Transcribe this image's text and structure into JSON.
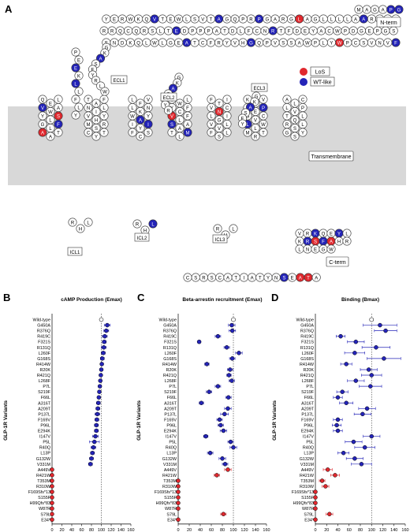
{
  "panels": {
    "A": "A",
    "B": "B",
    "C": "C",
    "D": "D"
  },
  "snake": {
    "n_term_label": "N-term",
    "c_term_label": "C-term",
    "transmembrane_label": "Transmembrane",
    "ecl_labels": [
      "ECL1",
      "ECL2",
      "ECL3"
    ],
    "icl_labels": [
      "ICL1",
      "ICL2",
      "ICL3"
    ],
    "legend": [
      {
        "label": "LoS",
        "color": "#e0282e"
      },
      {
        "label": "WT-like",
        "color": "#2424b8"
      }
    ],
    "colors": {
      "membrane": "#d8d8d8",
      "los": "#e0282e",
      "wt_like": "#2424b8",
      "residue_fill": "#ffffff"
    },
    "nterm_rows": [
      "MAGAPG",
      "PRLRAALLLLGALGRAGPRPQGATVSLWETVQKWREYRRQCQRSLTEDPPPATDLFCNRTFDEYACWPDGEPGSFVNVSCPWYLPWASSVPQGHVYRFCTAEGLWLQKDNSSLPWRDLSECEESKRGERSSPEEQLLFLY"
    ],
    "cterm_row": "CSRSCATIATYNSEATA"
  },
  "chart_data": [
    {
      "type": "scatter",
      "title": "cAMP Production (Emax)",
      "xlabel": "cAMP Production (Emax % wild-type)",
      "ylabel": "GLP-1R Variants",
      "xlim": [
        0,
        160
      ],
      "xticks": [
        0,
        20,
        40,
        60,
        80,
        100,
        120,
        140,
        160
      ],
      "reference_line": 100,
      "categories": [
        "Wild-type",
        "G450A",
        "R376Q",
        "R419C",
        "F321S",
        "R131Q",
        "L260F",
        "G168S",
        "R414W",
        "R20K",
        "R421Q",
        "L268F",
        "P7L",
        "S219F",
        "F66L",
        "A316T",
        "A209T",
        "P137L",
        "F169V",
        "P96L",
        "E294K",
        "I147V",
        "P5L",
        "R40Q",
        "L13P",
        "G132W",
        "V331M",
        "A449V",
        "R421W",
        "T353M",
        "R310W",
        "F169Sfs*13",
        "S155F",
        "H99Qfs*83",
        "W87R",
        "S79L",
        "E34*"
      ],
      "values": [
        100,
        112,
        110,
        107,
        106,
        105,
        104,
        102,
        101,
        100,
        99,
        98,
        97,
        96,
        95,
        94,
        93,
        92,
        91,
        90,
        90,
        88,
        86,
        84,
        82,
        80,
        78,
        0,
        0,
        0,
        0,
        0,
        0,
        0,
        0,
        0,
        0
      ],
      "errors": [
        3,
        6,
        5,
        5,
        4,
        5,
        4,
        4,
        3,
        3,
        3,
        3,
        3,
        3,
        3,
        4,
        4,
        5,
        4,
        4,
        4,
        6,
        10,
        5,
        4,
        4,
        4,
        0,
        0,
        0,
        0,
        0,
        0,
        0,
        0,
        0,
        0
      ],
      "series_colors": {
        "wild_type": "#ffffff",
        "wt_like": "#2424b8",
        "los": "#e0282e"
      }
    },
    {
      "type": "scatter",
      "title": "Beta-arrestin recruitment (Emax)",
      "xlabel": "Beta-arrestin recruitment (Emax % wild-type)",
      "ylabel": "GLP-1R Variants",
      "xlim": [
        0,
        160
      ],
      "xticks": [
        0,
        20,
        40,
        60,
        80,
        100,
        120,
        140,
        160
      ],
      "reference_line": 100,
      "categories": [
        "Wild-type",
        "G450A",
        "R376Q",
        "R419C",
        "F321S",
        "R131Q",
        "L260F",
        "G168S",
        "R414W",
        "R20K",
        "R421Q",
        "L268F",
        "P7L",
        "S219F",
        "F66L",
        "A316T",
        "A209T",
        "P137L",
        "F169V",
        "P96L",
        "E294K",
        "I147V",
        "P5L",
        "R40Q",
        "L13P",
        "G132W",
        "V331M",
        "A449V",
        "R421W",
        "T353M",
        "R310W",
        "F169Sfs*13",
        "S155F",
        "H99Qfs*83",
        "W87R",
        "S79L",
        "E34*"
      ],
      "values": [
        100,
        97,
        98,
        72,
        38,
        88,
        110,
        98,
        52,
        94,
        92,
        97,
        72,
        56,
        91,
        42,
        90,
        84,
        75,
        77,
        82,
        50,
        95,
        100,
        58,
        80,
        85,
        90,
        70,
        0,
        0,
        0,
        0,
        0,
        0,
        82,
        0
      ],
      "errors": [
        3,
        6,
        6,
        5,
        3,
        5,
        6,
        5,
        4,
        5,
        4,
        5,
        5,
        5,
        5,
        4,
        6,
        7,
        5,
        5,
        6,
        4,
        5,
        6,
        5,
        6,
        5,
        6,
        5,
        0,
        0,
        0,
        0,
        0,
        0,
        5,
        0
      ],
      "series_colors": {
        "wild_type": "#ffffff",
        "wt_like": "#2424b8",
        "los": "#e0282e"
      }
    },
    {
      "type": "scatter",
      "title": "Binding (Bmax)",
      "xlabel": "Emax (% wild-type)",
      "ylabel": "GLP-1R Variants",
      "xlim": [
        0,
        160
      ],
      "xticks": [
        0,
        20,
        40,
        60,
        80,
        100,
        120,
        140,
        160
      ],
      "reference_line": 100,
      "categories": [
        "Wild-type",
        "G450A",
        "R376Q",
        "R419C",
        "F321S",
        "R131Q",
        "L260F",
        "G168S",
        "R414W",
        "R20K",
        "R421Q",
        "L268F",
        "P7L",
        "S219F",
        "F66L",
        "A316T",
        "A209T",
        "P137L",
        "F169V",
        "P96L",
        "E294K",
        "I147V",
        "P5L",
        "R40Q",
        "L13P",
        "G132W",
        "V331M",
        "A449V",
        "R421W",
        "T353M",
        "R310W",
        "F169Sfs*13",
        "S155F",
        "H99Qfs*83",
        "W87R",
        "S79L",
        "E34*"
      ],
      "values": [
        100,
        115,
        125,
        45,
        72,
        108,
        70,
        122,
        55,
        95,
        100,
        72,
        98,
        48,
        40,
        55,
        92,
        84,
        40,
        38,
        40,
        100,
        68,
        88,
        50,
        70,
        82,
        22,
        35,
        12,
        18,
        0,
        0,
        0,
        0,
        25,
        0
      ],
      "errors": [
        3,
        30,
        20,
        8,
        15,
        25,
        18,
        30,
        10,
        15,
        18,
        15,
        20,
        10,
        8,
        12,
        15,
        15,
        8,
        8,
        8,
        15,
        15,
        18,
        10,
        15,
        18,
        8,
        8,
        5,
        6,
        0,
        0,
        0,
        0,
        6,
        0
      ],
      "series_colors": {
        "wild_type": "#ffffff",
        "wt_like": "#2424b8",
        "los": "#e0282e"
      }
    }
  ]
}
